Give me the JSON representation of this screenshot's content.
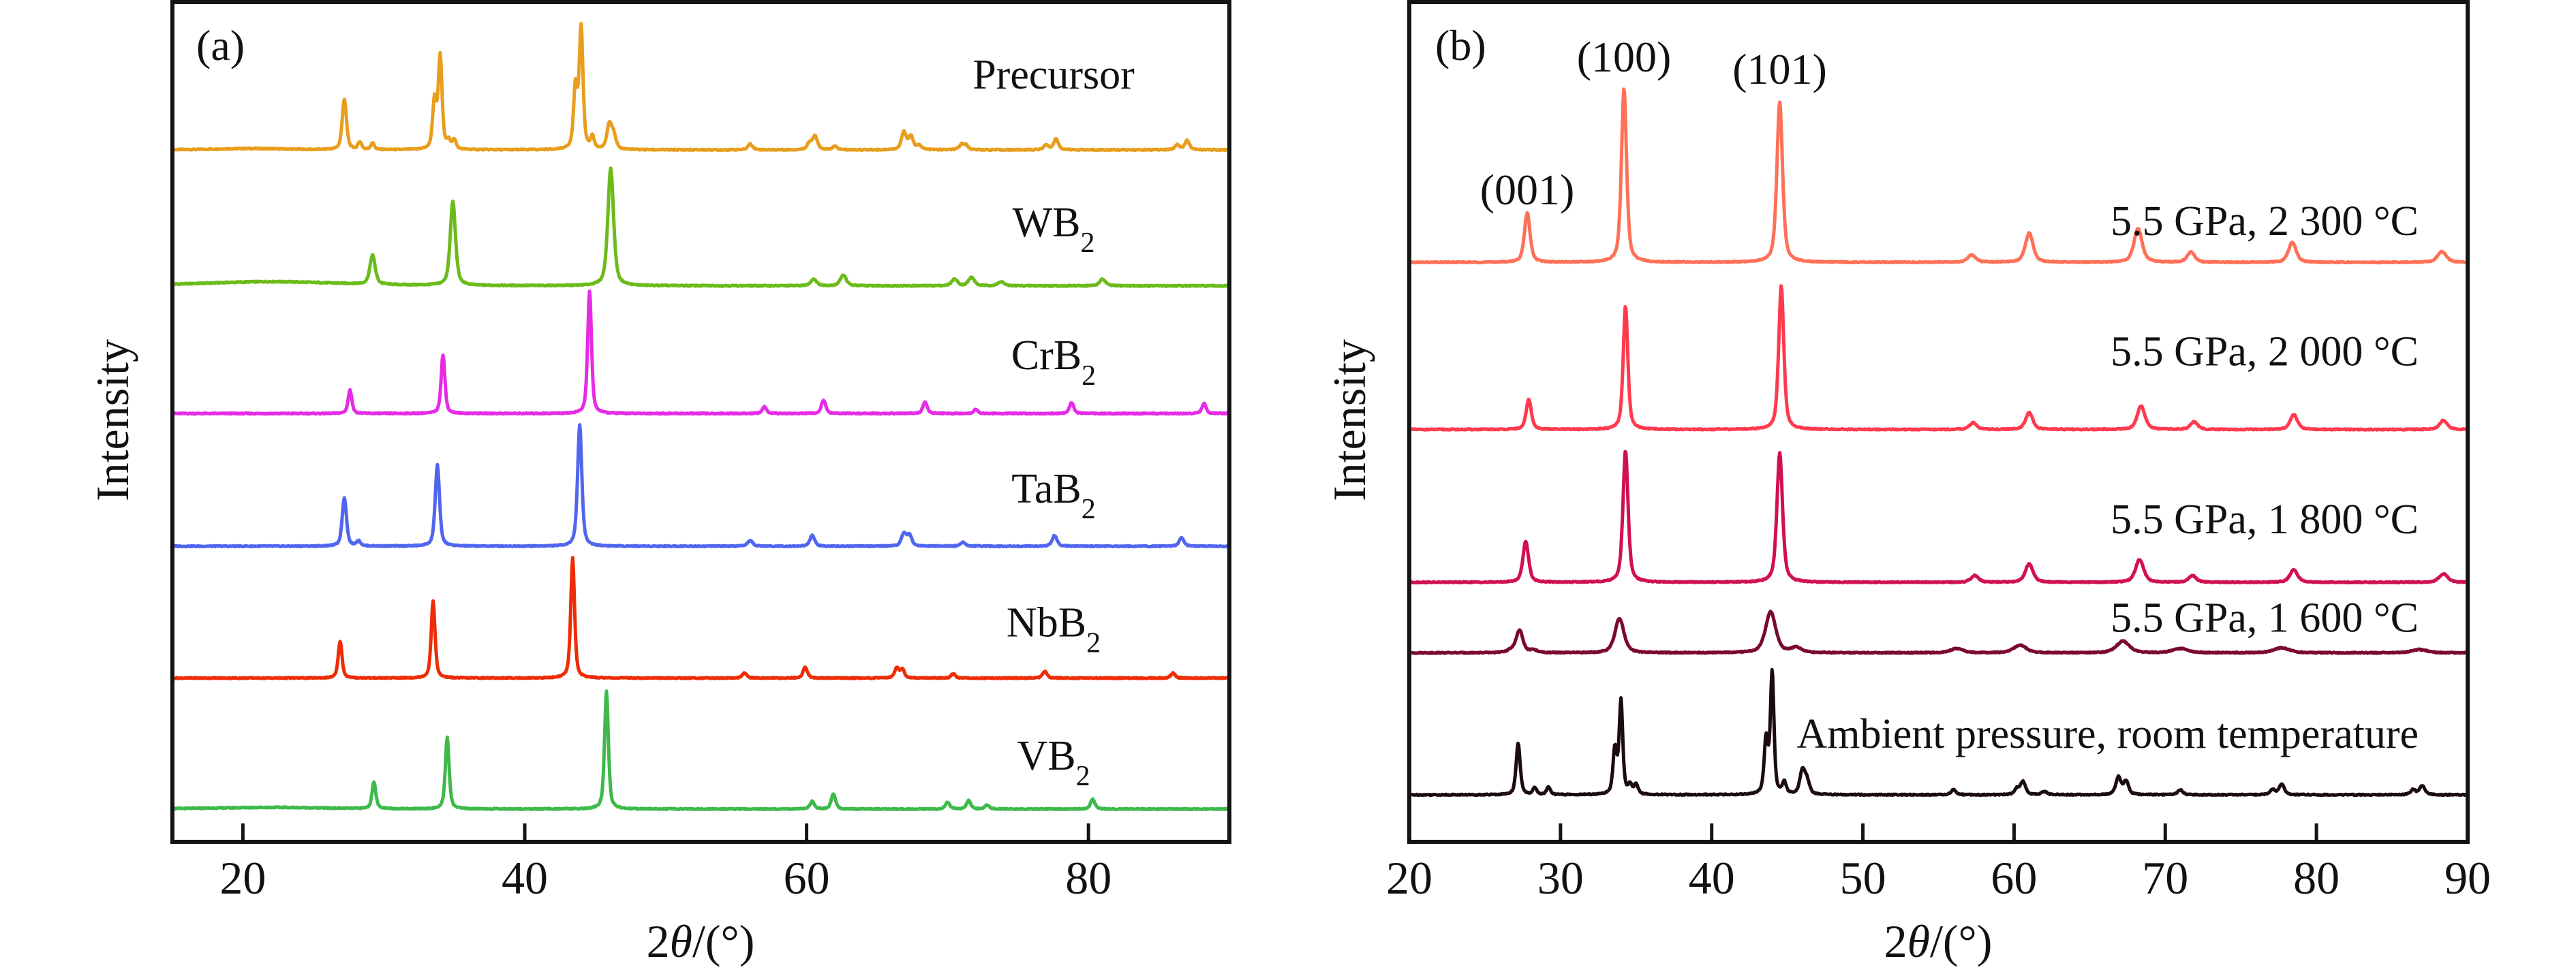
{
  "chart_data": [
    {
      "panel": "(a)",
      "type": "line",
      "title": "",
      "xlabel": "2θ/(°)",
      "ylabel": "Intensity",
      "xlim": [
        15,
        90
      ],
      "ylim": [
        0,
        100
      ],
      "y_units": "a.u. (stacked, offset)",
      "xticks": [
        20,
        40,
        60,
        80
      ],
      "tick_labels": [
        "20",
        "40",
        "60",
        "80"
      ],
      "grid": false,
      "legend": "inline labels, right of each trace",
      "series": [
        {
          "name": "Precursor",
          "label_main": "Precursor",
          "label_sub": "",
          "color": "#E89E1C",
          "offset": 82.4,
          "peaks": [
            [
              20.5,
              0.15,
              3.0
            ],
            [
              27.2,
              6.0,
              0.18
            ],
            [
              28.3,
              0.9,
              0.15
            ],
            [
              29.2,
              0.8,
              0.15
            ],
            [
              33.6,
              5.7,
              0.16
            ],
            [
              34.0,
              11.0,
              0.16
            ],
            [
              34.6,
              1.0,
              0.15
            ],
            [
              35.0,
              1.1,
              0.15
            ],
            [
              43.6,
              7.3,
              0.16
            ],
            [
              44.0,
              14.4,
              0.16
            ],
            [
              44.8,
              1.4,
              0.15
            ],
            [
              46.0,
              2.9,
              0.2
            ],
            [
              46.3,
              1.6,
              0.2
            ],
            [
              56.0,
              0.7,
              0.2
            ],
            [
              60.2,
              0.8,
              0.2
            ],
            [
              60.6,
              1.6,
              0.2
            ],
            [
              62.0,
              0.4,
              0.2
            ],
            [
              66.9,
              2.1,
              0.2
            ],
            [
              67.4,
              1.6,
              0.2
            ],
            [
              68.0,
              0.5,
              0.2
            ],
            [
              71.0,
              0.6,
              0.2
            ],
            [
              71.3,
              0.5,
              0.2
            ],
            [
              77.0,
              0.6,
              0.2
            ],
            [
              77.7,
              1.3,
              0.2
            ],
            [
              86.3,
              0.6,
              0.2
            ],
            [
              87.0,
              1.1,
              0.2
            ]
          ]
        },
        {
          "name": "WB2",
          "label_main": "WB",
          "label_sub": "2",
          "color": "#6CBB1A",
          "offset": 66.2,
          "peaks": [
            [
              22.0,
              0.5,
              6.0
            ],
            [
              29.2,
              3.5,
              0.22
            ],
            [
              34.9,
              10.0,
              0.22
            ],
            [
              46.1,
              14.0,
              0.24
            ],
            [
              60.5,
              0.8,
              0.25
            ],
            [
              62.6,
              1.3,
              0.25
            ],
            [
              70.5,
              0.8,
              0.25
            ],
            [
              71.7,
              1.0,
              0.25
            ],
            [
              73.8,
              0.5,
              0.25
            ],
            [
              81.0,
              0.8,
              0.25
            ]
          ]
        },
        {
          "name": "CrB2",
          "label_main": "CrB",
          "label_sub": "2",
          "color": "#E62AE6",
          "offset": 51.0,
          "peaks": [
            [
              27.6,
              2.8,
              0.16
            ],
            [
              34.2,
              7.0,
              0.16
            ],
            [
              44.6,
              14.6,
              0.16
            ],
            [
              57.0,
              0.8,
              0.18
            ],
            [
              61.2,
              1.6,
              0.18
            ],
            [
              68.4,
              1.4,
              0.18
            ],
            [
              72.0,
              0.5,
              0.18
            ],
            [
              78.8,
              1.3,
              0.18
            ],
            [
              88.2,
              1.2,
              0.18
            ]
          ]
        },
        {
          "name": "TaB2",
          "label_main": "TaB",
          "label_sub": "2",
          "color": "#5066EE",
          "offset": 35.2,
          "peaks": [
            [
              27.2,
              5.8,
              0.18
            ],
            [
              28.2,
              0.6,
              0.18
            ],
            [
              33.8,
              9.7,
              0.18
            ],
            [
              43.9,
              14.4,
              0.18
            ],
            [
              56.0,
              0.7,
              0.2
            ],
            [
              60.4,
              1.3,
              0.2
            ],
            [
              66.9,
              1.5,
              0.2
            ],
            [
              67.3,
              1.3,
              0.2
            ],
            [
              71.1,
              0.5,
              0.2
            ],
            [
              77.6,
              1.3,
              0.2
            ],
            [
              86.6,
              1.0,
              0.2
            ]
          ]
        },
        {
          "name": "NbB2",
          "label_main": "NbB",
          "label_sub": "2",
          "color": "#EE2C06",
          "offset": 19.5,
          "peaks": [
            [
              26.9,
              4.4,
              0.16
            ],
            [
              33.5,
              9.2,
              0.16
            ],
            [
              43.4,
              14.3,
              0.16
            ],
            [
              55.6,
              0.6,
              0.18
            ],
            [
              59.9,
              1.3,
              0.18
            ],
            [
              66.4,
              1.2,
              0.18
            ],
            [
              66.8,
              1.0,
              0.18
            ],
            [
              70.4,
              0.5,
              0.18
            ],
            [
              76.9,
              0.8,
              0.18
            ],
            [
              86.0,
              0.6,
              0.18
            ]
          ]
        },
        {
          "name": "VB2",
          "label_main": "VB",
          "label_sub": "2",
          "color": "#3EB94B",
          "offset": 3.9,
          "peaks": [
            [
              22.0,
              0.2,
              5.0
            ],
            [
              29.3,
              3.2,
              0.16
            ],
            [
              34.5,
              8.5,
              0.16
            ],
            [
              45.8,
              14.0,
              0.16
            ],
            [
              60.4,
              0.9,
              0.18
            ],
            [
              61.9,
              1.8,
              0.18
            ],
            [
              70.0,
              0.8,
              0.18
            ],
            [
              71.5,
              1.0,
              0.18
            ],
            [
              72.8,
              0.5,
              0.18
            ],
            [
              80.3,
              1.2,
              0.18
            ]
          ]
        }
      ]
    },
    {
      "panel": "(b)",
      "type": "line",
      "title": "",
      "xlabel": "2θ/(°)",
      "ylabel": "Intensity",
      "xlim": [
        20,
        90
      ],
      "ylim": [
        0,
        100
      ],
      "y_units": "a.u. (stacked, offset)",
      "xticks": [
        20,
        30,
        40,
        50,
        60,
        70,
        80,
        90
      ],
      "tick_labels": [
        "20",
        "30",
        "40",
        "50",
        "60",
        "70",
        "80",
        "90"
      ],
      "grid": false,
      "legend": "inline labels, right of each trace",
      "annotations": [
        {
          "text": "(001)",
          "x": 27.8
        },
        {
          "text": "(100)",
          "x": 34.2
        },
        {
          "text": "(101)",
          "x": 44.5
        }
      ],
      "series": [
        {
          "name": "5.5 GPa, 2 300 °C",
          "color": "#FF7058",
          "offset": 69.0,
          "peaks": [
            [
              27.8,
              5.9,
              0.22
            ],
            [
              34.2,
              20.7,
              0.2
            ],
            [
              44.5,
              19.1,
              0.22
            ],
            [
              57.2,
              0.9,
              0.3
            ],
            [
              61.0,
              3.5,
              0.3
            ],
            [
              68.2,
              4.0,
              0.32
            ],
            [
              71.7,
              1.2,
              0.3
            ],
            [
              78.4,
              2.4,
              0.3
            ],
            [
              88.3,
              1.3,
              0.35
            ]
          ]
        },
        {
          "name": "5.5 GPa, 2 000 °C",
          "color": "#FF3A4C",
          "offset": 49.1,
          "peaks": [
            [
              27.9,
              3.6,
              0.2
            ],
            [
              34.3,
              14.7,
              0.18
            ],
            [
              44.6,
              17.1,
              0.2
            ],
            [
              57.3,
              0.8,
              0.28
            ],
            [
              61.0,
              2.0,
              0.28
            ],
            [
              68.4,
              2.8,
              0.3
            ],
            [
              71.9,
              0.9,
              0.28
            ],
            [
              78.5,
              1.8,
              0.28
            ],
            [
              88.4,
              1.1,
              0.3
            ]
          ]
        },
        {
          "name": "5.5 GPa, 1 800 °C",
          "color": "#D0114E",
          "offset": 30.9,
          "peaks": [
            [
              27.7,
              4.9,
              0.22
            ],
            [
              34.3,
              15.7,
              0.2
            ],
            [
              44.5,
              15.4,
              0.22
            ],
            [
              57.4,
              0.8,
              0.3
            ],
            [
              61.0,
              2.2,
              0.3
            ],
            [
              68.3,
              2.7,
              0.32
            ],
            [
              71.8,
              0.8,
              0.3
            ],
            [
              78.5,
              1.5,
              0.3
            ],
            [
              88.4,
              1.0,
              0.35
            ]
          ]
        },
        {
          "name": "5.5 GPa, 1 600 °C",
          "color": "#7A0A2C",
          "offset": 22.5,
          "peaks": [
            [
              26.9,
              0.4,
              0.4
            ],
            [
              27.3,
              2.5,
              0.25
            ],
            [
              28.2,
              0.3,
              0.3
            ],
            [
              33.9,
              4.1,
              0.35
            ],
            [
              43.9,
              4.9,
              0.4
            ],
            [
              45.6,
              0.6,
              0.4
            ],
            [
              56.2,
              0.5,
              0.5
            ],
            [
              60.4,
              0.9,
              0.5
            ],
            [
              67.2,
              1.4,
              0.5
            ],
            [
              71.0,
              0.5,
              0.6
            ],
            [
              77.7,
              0.6,
              0.6
            ],
            [
              86.8,
              0.4,
              0.6
            ]
          ]
        },
        {
          "name": "Ambient pressure, room temperature",
          "color": "#1C0B12",
          "offset": 5.6,
          "peaks": [
            [
              27.2,
              6.1,
              0.16
            ],
            [
              28.3,
              0.8,
              0.15
            ],
            [
              29.2,
              0.9,
              0.15
            ],
            [
              33.6,
              5.3,
              0.15
            ],
            [
              34.0,
              11.1,
              0.14
            ],
            [
              34.6,
              1.1,
              0.15
            ],
            [
              35.0,
              1.2,
              0.15
            ],
            [
              43.6,
              6.5,
              0.15
            ],
            [
              44.0,
              14.4,
              0.14
            ],
            [
              44.8,
              1.4,
              0.15
            ],
            [
              46.0,
              2.8,
              0.2
            ],
            [
              46.3,
              1.5,
              0.2
            ],
            [
              56.0,
              0.6,
              0.2
            ],
            [
              60.2,
              0.7,
              0.2
            ],
            [
              60.6,
              1.5,
              0.2
            ],
            [
              62.0,
              0.4,
              0.2
            ],
            [
              66.9,
              2.1,
              0.2
            ],
            [
              67.4,
              1.6,
              0.2
            ],
            [
              71.0,
              0.6,
              0.2
            ],
            [
              77.1,
              0.6,
              0.2
            ],
            [
              77.7,
              1.3,
              0.2
            ],
            [
              86.4,
              0.6,
              0.2
            ],
            [
              87.0,
              1.1,
              0.2
            ]
          ]
        }
      ]
    }
  ],
  "labels": {
    "panel_a": "(a)",
    "panel_b": "(b)",
    "xlabel_prefix": "2",
    "xlabel_theta": "θ",
    "xlabel_suffix": "/(°)",
    "ylabel": "Intensity"
  }
}
